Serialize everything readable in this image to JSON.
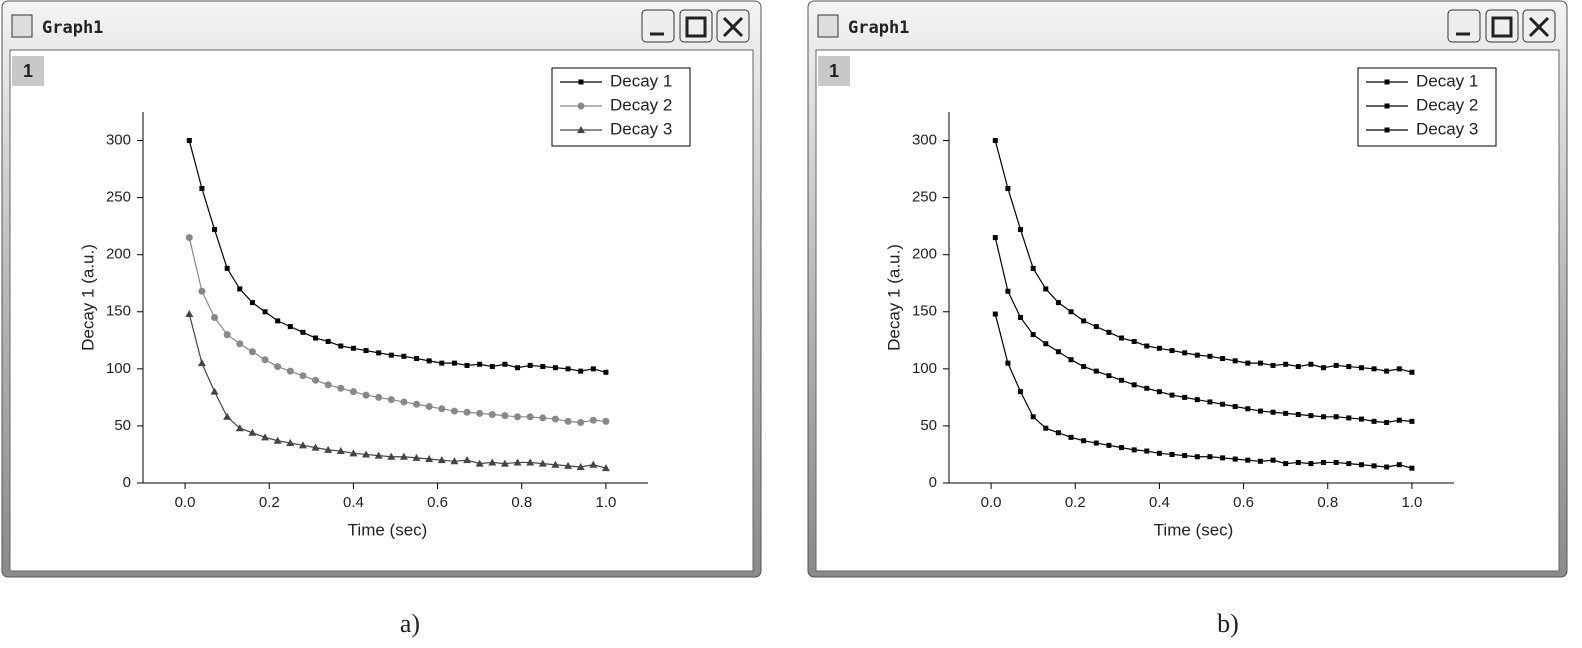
{
  "windows": [
    {
      "title": "Graph1",
      "layer": "1",
      "caption": "a)"
    },
    {
      "title": "Graph1",
      "layer": "1",
      "caption": "b)"
    }
  ],
  "chart_data": [
    {
      "type": "line",
      "x_label": "Time (sec)",
      "y_label": "Decay 1 (a.u.)",
      "x": [
        0.01,
        0.04,
        0.07,
        0.1,
        0.13,
        0.16,
        0.19,
        0.22,
        0.25,
        0.28,
        0.31,
        0.34,
        0.37,
        0.4,
        0.43,
        0.46,
        0.49,
        0.52,
        0.55,
        0.58,
        0.61,
        0.64,
        0.67,
        0.7,
        0.73,
        0.76,
        0.79,
        0.82,
        0.85,
        0.88,
        0.91,
        0.94,
        0.97,
        1.0
      ],
      "series": [
        {
          "name": "Decay 1",
          "color": "#000000",
          "marker": "square",
          "values": [
            300,
            258,
            222,
            188,
            170,
            158,
            150,
            142,
            137,
            132,
            127,
            124,
            120,
            118,
            116,
            114,
            112,
            111,
            109,
            107,
            105,
            105,
            103,
            104,
            102,
            104,
            101,
            103,
            102,
            101,
            100,
            98,
            100,
            97
          ]
        },
        {
          "name": "Decay 2",
          "color": "#888888",
          "marker": "circle",
          "values": [
            215,
            168,
            145,
            130,
            122,
            115,
            108,
            102,
            98,
            94,
            90,
            86,
            83,
            80,
            77,
            75,
            73,
            71,
            69,
            67,
            65,
            63,
            62,
            61,
            60,
            59,
            58,
            58,
            57,
            56,
            54,
            53,
            55,
            54
          ]
        },
        {
          "name": "Decay 3",
          "color": "#444444",
          "marker": "triangle",
          "values": [
            148,
            105,
            80,
            58,
            48,
            44,
            40,
            37,
            35,
            33,
            31,
            29,
            28,
            26,
            25,
            24,
            23,
            23,
            22,
            21,
            20,
            19,
            20,
            17,
            18,
            17,
            18,
            18,
            17,
            16,
            15,
            14,
            16,
            13
          ]
        }
      ],
      "xlim": [
        -0.1,
        1.1
      ],
      "xticks": [
        {
          "value": 0,
          "label": "0.0"
        },
        0.2,
        0.4,
        0.6,
        0.8,
        {
          "value": 1,
          "label": "1.0"
        }
      ],
      "ylim": [
        0,
        325
      ],
      "yticks": [
        0,
        50,
        100,
        150,
        200,
        250,
        300
      ],
      "legend": "top right"
    },
    {
      "type": "line",
      "x_label": "Time (sec)",
      "y_label": "Decay 1 (a.u.)",
      "x": [
        0.01,
        0.04,
        0.07,
        0.1,
        0.13,
        0.16,
        0.19,
        0.22,
        0.25,
        0.28,
        0.31,
        0.34,
        0.37,
        0.4,
        0.43,
        0.46,
        0.49,
        0.52,
        0.55,
        0.58,
        0.61,
        0.64,
        0.67,
        0.7,
        0.73,
        0.76,
        0.79,
        0.82,
        0.85,
        0.88,
        0.91,
        0.94,
        0.97,
        1.0
      ],
      "series": [
        {
          "name": "Decay 1",
          "color": "#000000",
          "marker": "square",
          "values": [
            300,
            258,
            222,
            188,
            170,
            158,
            150,
            142,
            137,
            132,
            127,
            124,
            120,
            118,
            116,
            114,
            112,
            111,
            109,
            107,
            105,
            105,
            103,
            104,
            102,
            104,
            101,
            103,
            102,
            101,
            100,
            98,
            100,
            97
          ]
        },
        {
          "name": "Decay 2",
          "color": "#000000",
          "marker": "square",
          "values": [
            215,
            168,
            145,
            130,
            122,
            115,
            108,
            102,
            98,
            94,
            90,
            86,
            83,
            80,
            77,
            75,
            73,
            71,
            69,
            67,
            65,
            63,
            62,
            61,
            60,
            59,
            58,
            58,
            57,
            56,
            54,
            53,
            55,
            54
          ]
        },
        {
          "name": "Decay 3",
          "color": "#000000",
          "marker": "square",
          "values": [
            148,
            105,
            80,
            58,
            48,
            44,
            40,
            37,
            35,
            33,
            31,
            29,
            28,
            26,
            25,
            24,
            23,
            23,
            22,
            21,
            20,
            19,
            20,
            17,
            18,
            17,
            18,
            18,
            17,
            16,
            15,
            14,
            16,
            13
          ]
        }
      ],
      "xlim": [
        -0.1,
        1.1
      ],
      "xticks": [
        {
          "value": 0,
          "label": "0.0"
        },
        0.2,
        0.4,
        0.6,
        0.8,
        {
          "value": 1,
          "label": "1.0"
        }
      ],
      "ylim": [
        0,
        325
      ],
      "yticks": [
        0,
        50,
        100,
        150,
        200,
        250,
        300
      ],
      "legend": "top right"
    }
  ]
}
